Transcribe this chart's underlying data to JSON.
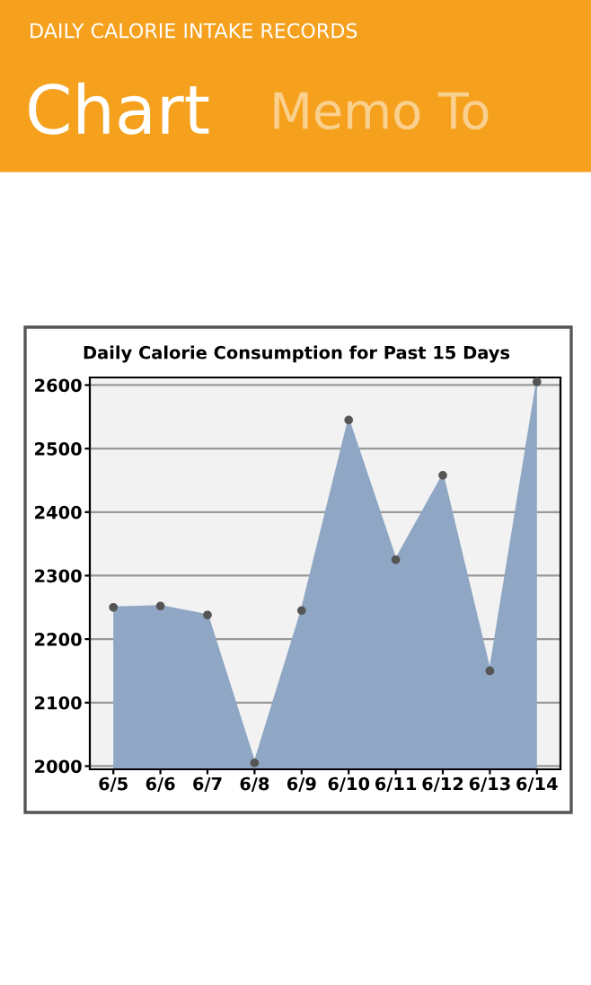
{
  "chart_data": {
    "type": "area",
    "title": "Daily Calorie Consumption for Past 15 Days",
    "annotations": [
      "DAILY CALORIE INTAKE RECORDS",
      "Chart",
      "Memo To"
    ],
    "categories": [
      "6/5",
      "6/6",
      "6/7",
      "6/8",
      "6/9",
      "6/10",
      "6/11",
      "6/12",
      "6/13",
      "6/14"
    ],
    "series": [
      {
        "color": "#8fa7c4",
        "values": [
          2250,
          2252,
          2238,
          2005,
          2245,
          2545,
          2325,
          2458,
          2150,
          2605
        ]
      }
    ],
    "ylim": [
      1995,
      2612
    ],
    "yticks": [
      2000,
      2100,
      2200,
      2300,
      2400,
      2500,
      2600
    ],
    "grid": "y",
    "marker": "circle"
  }
}
